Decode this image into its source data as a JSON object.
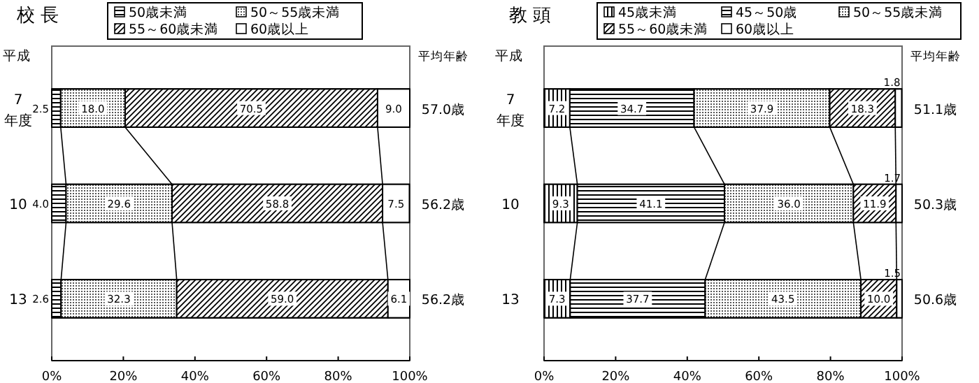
{
  "chart_data": [
    {
      "type": "bar",
      "title": "校 長",
      "orientation": "horizontal",
      "stacked": true,
      "legend": "top",
      "ylabel": "平成",
      "categories": [
        "7\n年度",
        "10",
        "13"
      ],
      "series": [
        {
          "name": "50歳未満",
          "values": [
            2.5,
            4.0,
            2.6
          ],
          "value_labels": [
            "2.5",
            "4.0",
            "2.6"
          ]
        },
        {
          "name": "50～55歳未満",
          "values": [
            18.0,
            29.6,
            32.3
          ],
          "value_labels": [
            "18.0",
            "29.6",
            "32.3"
          ]
        },
        {
          "name": "55～60歳未満",
          "values": [
            70.5,
            58.8,
            59.0
          ],
          "value_labels": [
            "70.5",
            "58.8",
            "59.0"
          ]
        },
        {
          "name": "60歳以上",
          "values": [
            9.0,
            7.5,
            6.1
          ],
          "value_labels": [
            "9.0",
            "7.5",
            "6.1"
          ]
        }
      ],
      "xlim": [
        0,
        100
      ],
      "xticks": [
        {
          "value": 0,
          "label": "0%"
        },
        {
          "value": 20,
          "label": "20%"
        },
        {
          "value": 40,
          "label": "40%"
        },
        {
          "value": 60,
          "label": "60%"
        },
        {
          "value": 80,
          "label": "80%"
        },
        {
          "value": 100,
          "label": "100%"
        }
      ],
      "annotations": [
        "平均年齢",
        "57.0歳",
        "56.2歳",
        "56.2歳"
      ]
    },
    {
      "type": "bar",
      "title": "教 頭",
      "orientation": "horizontal",
      "stacked": true,
      "legend": "top",
      "ylabel": "平成",
      "categories": [
        "7\n年度",
        "10",
        "13"
      ],
      "series": [
        {
          "name": "45歳未満",
          "values": [
            7.2,
            9.3,
            7.3
          ],
          "value_labels": [
            "7.2",
            "9.3",
            "7.3"
          ]
        },
        {
          "name": "45～50歳",
          "values": [
            34.7,
            41.1,
            37.7
          ],
          "value_labels": [
            "34.7",
            "41.1",
            "37.7"
          ]
        },
        {
          "name": "50～55歳未満",
          "values": [
            37.9,
            36.0,
            43.5
          ],
          "value_labels": [
            "37.9",
            "36.0",
            "43.5"
          ]
        },
        {
          "name": "55～60歳未満",
          "values": [
            18.3,
            11.9,
            10.0
          ],
          "value_labels": [
            "18.3",
            "11.9",
            "10.0"
          ]
        },
        {
          "name": "60歳以上",
          "values": [
            1.8,
            1.7,
            1.5
          ],
          "value_labels": [
            "1.8",
            "1.7",
            "1.5"
          ]
        }
      ],
      "xlim": [
        0,
        100
      ],
      "xticks": [
        {
          "value": 0,
          "label": "0%"
        },
        {
          "value": 20,
          "label": "20%"
        },
        {
          "value": 40,
          "label": "40%"
        },
        {
          "value": 60,
          "label": "60%"
        },
        {
          "value": 80,
          "label": "80%"
        },
        {
          "value": 100,
          "label": "100%"
        }
      ],
      "annotations": [
        "平均年齢",
        "51.1歳",
        "50.3歳",
        "50.6歳"
      ]
    }
  ]
}
